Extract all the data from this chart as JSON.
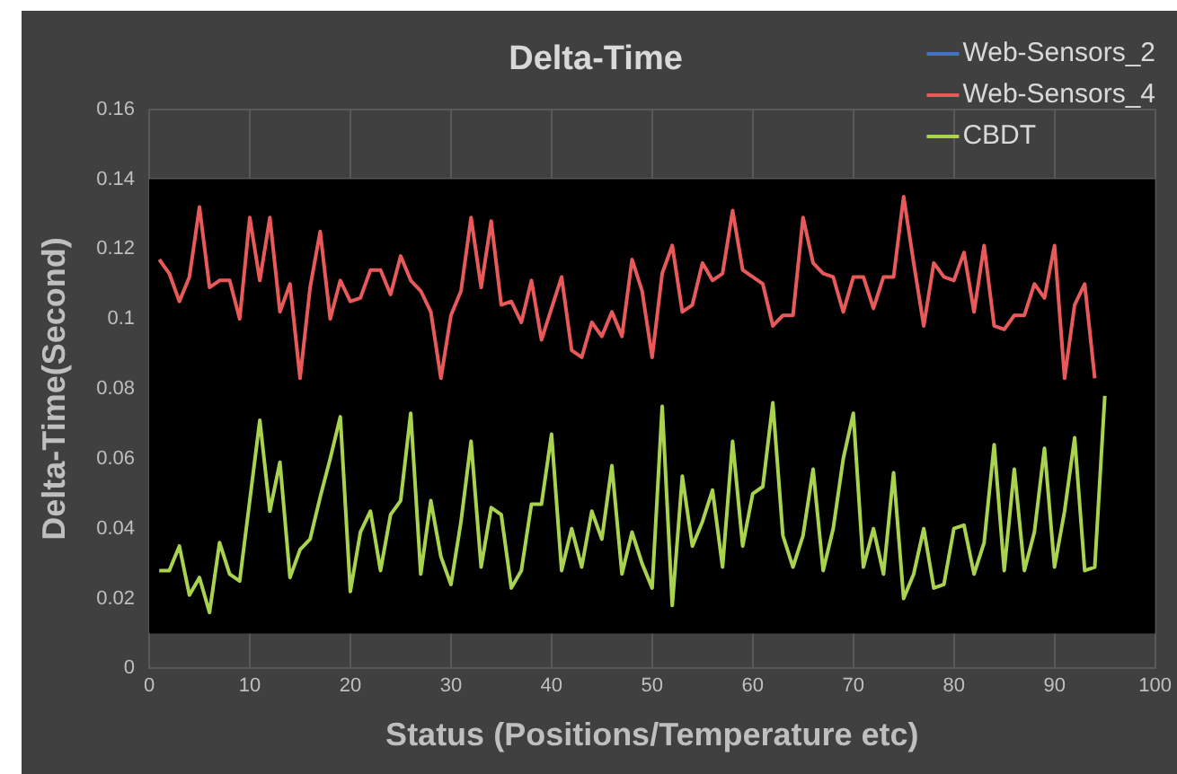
{
  "chart_data": {
    "type": "line",
    "title": "Delta-Time",
    "xlabel": "Status (Positions/Temperature etc)",
    "ylabel": "Delta-Time(Second)",
    "x": [
      1,
      2,
      3,
      4,
      5,
      6,
      7,
      8,
      9,
      10,
      11,
      12,
      13,
      14,
      15,
      16,
      17,
      18,
      19,
      20,
      21,
      22,
      23,
      24,
      25,
      26,
      27,
      28,
      29,
      30,
      31,
      32,
      33,
      34,
      35,
      36,
      37,
      38,
      39,
      40,
      41,
      42,
      43,
      44,
      45,
      46,
      47,
      48,
      49,
      50,
      51,
      52,
      53,
      54,
      55,
      56,
      57,
      58,
      59,
      60,
      61,
      62,
      63,
      64,
      65,
      66,
      67,
      68,
      69,
      70,
      71,
      72,
      73,
      74,
      75,
      76,
      77,
      78,
      79,
      80,
      81,
      82,
      83,
      84,
      85,
      86,
      87,
      88,
      89,
      90,
      91,
      92,
      93,
      94,
      95
    ],
    "series": [
      {
        "name": "Web-Sensors_2",
        "color": "#4472c4",
        "values": [
          null,
          null,
          null,
          null,
          null,
          null,
          null,
          null,
          null,
          null,
          null,
          null,
          null,
          null,
          null,
          null,
          null,
          null,
          null,
          null,
          null,
          null,
          null,
          null,
          null,
          null,
          null,
          null,
          null,
          null,
          null,
          null,
          null,
          null,
          null,
          null,
          null,
          null,
          null,
          null,
          null,
          null,
          null,
          null,
          null,
          null,
          null,
          null,
          null,
          null,
          null,
          null,
          null,
          null,
          null,
          null,
          null,
          null,
          null,
          null,
          null,
          null,
          null,
          null,
          null,
          null,
          null,
          null,
          null,
          null,
          null,
          null,
          null,
          null,
          null,
          null,
          null,
          null,
          null,
          null,
          null,
          null,
          null,
          null,
          null,
          null,
          null,
          null,
          null,
          null,
          null,
          null,
          null,
          null,
          null
        ]
      },
      {
        "name": "Web-Sensors_4",
        "color": "#e8595a",
        "values": [
          0.117,
          0.113,
          0.105,
          0.112,
          0.132,
          0.109,
          0.111,
          0.111,
          0.1,
          0.129,
          0.111,
          0.129,
          0.102,
          0.11,
          0.083,
          0.109,
          0.125,
          0.1,
          0.111,
          0.105,
          0.106,
          0.114,
          0.114,
          0.107,
          0.118,
          0.111,
          0.108,
          0.102,
          0.083,
          0.101,
          0.108,
          0.129,
          0.109,
          0.128,
          0.104,
          0.105,
          0.099,
          0.111,
          0.094,
          0.103,
          0.112,
          0.091,
          0.089,
          0.099,
          0.095,
          0.102,
          0.095,
          0.117,
          0.108,
          0.089,
          0.113,
          0.121,
          0.102,
          0.104,
          0.116,
          0.111,
          0.113,
          0.131,
          0.114,
          0.112,
          0.11,
          0.098,
          0.101,
          0.101,
          0.129,
          0.116,
          0.113,
          0.112,
          0.102,
          0.112,
          0.112,
          0.103,
          0.112,
          0.112,
          0.135,
          0.116,
          0.098,
          0.116,
          0.112,
          0.111,
          0.119,
          0.102,
          0.121,
          0.098,
          0.097,
          0.101,
          0.101,
          0.11,
          0.106,
          0.121,
          0.083,
          0.104,
          0.11,
          0.083,
          null
        ]
      },
      {
        "name": "CBDT",
        "color": "#a9d24f",
        "values": [
          0.028,
          0.028,
          0.035,
          0.021,
          0.026,
          0.016,
          0.036,
          0.027,
          0.025,
          0.048,
          0.071,
          0.045,
          0.059,
          0.026,
          0.034,
          0.037,
          0.049,
          0.06,
          0.072,
          0.022,
          0.039,
          0.045,
          0.028,
          0.044,
          0.048,
          0.073,
          0.027,
          0.048,
          0.032,
          0.024,
          0.042,
          0.065,
          0.029,
          0.046,
          0.044,
          0.023,
          0.028,
          0.047,
          0.047,
          0.067,
          0.028,
          0.04,
          0.029,
          0.045,
          0.037,
          0.058,
          0.027,
          0.039,
          0.03,
          0.023,
          0.075,
          0.018,
          0.055,
          0.035,
          0.042,
          0.051,
          0.029,
          0.065,
          0.035,
          0.05,
          0.052,
          0.076,
          0.038,
          0.029,
          0.038,
          0.057,
          0.028,
          0.04,
          0.06,
          0.073,
          0.029,
          0.04,
          0.027,
          0.056,
          0.02,
          0.027,
          0.04,
          0.023,
          0.024,
          0.04,
          0.041,
          0.027,
          0.036,
          0.064,
          0.028,
          0.057,
          0.028,
          0.039,
          0.063,
          0.029,
          0.045,
          0.066,
          0.028,
          0.029,
          0.078
        ]
      }
    ],
    "xlim": [
      0,
      100
    ],
    "xticks": [
      0,
      10,
      20,
      30,
      40,
      50,
      60,
      70,
      80,
      90,
      100
    ],
    "ylim": [
      0,
      0.16
    ],
    "yticks": [
      0,
      0.02,
      0.04,
      0.06,
      0.08,
      0.1,
      0.12,
      0.14,
      0.16
    ],
    "bands": [
      {
        "axis": "y",
        "from": 0.01,
        "to": 0.14,
        "color": "#000000"
      }
    ],
    "grid": true,
    "legend": "top right",
    "marker": "none",
    "line_style": "solid"
  }
}
